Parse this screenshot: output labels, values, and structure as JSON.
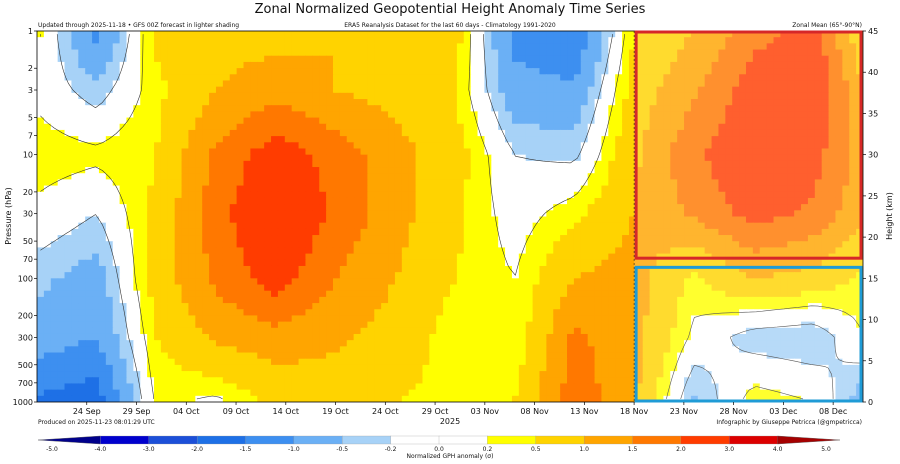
{
  "chart_data": {
    "type": "heatmap",
    "title": "Zonal Normalized Geopotential Height Anomaly Time Series",
    "subtitle": "ERA5 Reanalysis Dataset for the last 60 days - Climatology 1991-2020",
    "top_left_note": "Updated through 2025-11-18 • GFS 00Z forecast in lighter shading",
    "top_right_note": "Zonal Mean (65°-90°N)",
    "bottom_left_note": "Produced on 2025-11-23 08:01:29 UTC",
    "bottom_right_note": "Infographic by Giuseppe Petricca (@gmpetricca)",
    "xlabel": "2025",
    "ylabel": "Pressure (hPa)",
    "ylabel_right": "Height (km)",
    "x_ticks": [
      "24 Sep",
      "29 Sep",
      "04 Oct",
      "09 Oct",
      "14 Oct",
      "19 Oct",
      "24 Oct",
      "29 Oct",
      "03 Nov",
      "08 Nov",
      "13 Nov",
      "18 Nov",
      "23 Nov",
      "28 Nov",
      "03 Dec",
      "08 Dec"
    ],
    "x_tick_days": [
      5,
      10,
      15,
      20,
      25,
      30,
      35,
      40,
      45,
      50,
      55,
      60,
      65,
      70,
      75,
      80
    ],
    "x_range_days": [
      0,
      83
    ],
    "forecast_start_day": 60,
    "y_ticks": [
      1,
      2,
      3,
      5,
      7,
      10,
      20,
      30,
      50,
      70,
      100,
      200,
      300,
      500,
      700,
      1000
    ],
    "ylim_hPa": [
      1000,
      1
    ],
    "right_ticks_km": [
      0,
      5,
      10,
      15,
      20,
      25,
      30,
      35,
      40,
      45
    ],
    "right_ylim_km": [
      0,
      45
    ],
    "colorbar": {
      "label": "Normalized GPH anomaly (σ)",
      "levels": [
        -5.0,
        -4.0,
        -3.0,
        -2.0,
        -1.5,
        -1.0,
        -0.5,
        -0.2,
        0.0,
        0.2,
        0.5,
        1.0,
        1.5,
        2.0,
        3.0,
        4.0,
        5.0
      ],
      "tick_labels": [
        "-5.0",
        "-4.0",
        "-3.0",
        "-2.0",
        "-1.5",
        "-1.0",
        "-0.5",
        "-0.2",
        "0.0",
        "0.2",
        "0.5",
        "1.0",
        "1.5",
        "2.0",
        "3.0",
        "4.0",
        "5.0"
      ],
      "colors": [
        "#00008b",
        "#0000cd",
        "#1c4fd8",
        "#1e70e6",
        "#3d8ff0",
        "#6bb0f5",
        "#a7d2f7",
        "#ffffff",
        "#ffffff",
        "#ffff00",
        "#ffd300",
        "#ffa500",
        "#ff7800",
        "#ff3c00",
        "#dc0000",
        "#a50000"
      ]
    },
    "boxes": [
      {
        "name": "stratosphere-forecast",
        "days": [
          60,
          83
        ],
        "p_hPa": [
          1,
          70
        ],
        "color": "#d62728"
      },
      {
        "name": "troposphere-forecast",
        "days": [
          60,
          83
        ],
        "p_hPa": [
          80,
          1000
        ],
        "color": "#1f9bd6"
      }
    ],
    "sample_rows_p_hPa": [
      1,
      3,
      10,
      30,
      100,
      300,
      1000
    ],
    "sample_cols_day": [
      0,
      6,
      12,
      18,
      24,
      30,
      36,
      42,
      48,
      54,
      60,
      66,
      72,
      78,
      83
    ],
    "z_sigma": [
      [
        0.3,
        -1.2,
        0.6,
        0.8,
        0.8,
        1.0,
        0.6,
        0.7,
        -1.2,
        -1.5,
        0.5,
        1.0,
        1.8,
        2.2,
        0.6
      ],
      [
        0.1,
        -0.4,
        0.4,
        1.0,
        1.3,
        1.0,
        0.8,
        0.5,
        -0.8,
        -0.9,
        0.7,
        1.4,
        2.3,
        2.6,
        1.0
      ],
      [
        0.4,
        0.3,
        0.5,
        1.6,
        2.3,
        1.8,
        1.2,
        0.7,
        -0.2,
        -0.3,
        0.9,
        1.9,
        2.5,
        2.2,
        1.3
      ],
      [
        0.1,
        -0.2,
        0.6,
        1.8,
        2.6,
        1.9,
        1.2,
        0.6,
        0.0,
        0.4,
        1.0,
        1.6,
        2.2,
        1.9,
        1.1
      ],
      [
        -0.4,
        -0.7,
        0.7,
        1.6,
        2.3,
        1.5,
        1.0,
        0.5,
        0.2,
        1.0,
        1.2,
        0.4,
        1.0,
        0.8,
        0.4
      ],
      [
        -0.7,
        -1.0,
        0.5,
        1.1,
        1.3,
        1.1,
        0.8,
        0.3,
        0.2,
        1.6,
        1.2,
        0.1,
        -0.4,
        -0.5,
        0.2
      ],
      [
        -1.6,
        -1.8,
        0.3,
        0.1,
        0.6,
        0.7,
        0.5,
        0.4,
        0.5,
        1.8,
        1.1,
        -0.6,
        0.4,
        0.2,
        -0.8
      ]
    ]
  }
}
